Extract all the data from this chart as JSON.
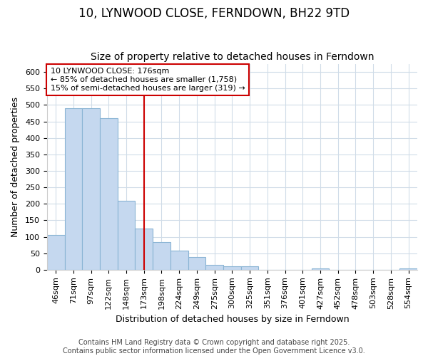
{
  "title": "10, LYNWOOD CLOSE, FERNDOWN, BH22 9TD",
  "subtitle": "Size of property relative to detached houses in Ferndown",
  "xlabel": "Distribution of detached houses by size in Ferndown",
  "ylabel": "Number of detached properties",
  "categories": [
    "46sqm",
    "71sqm",
    "97sqm",
    "122sqm",
    "148sqm",
    "173sqm",
    "198sqm",
    "224sqm",
    "249sqm",
    "275sqm",
    "300sqm",
    "325sqm",
    "351sqm",
    "376sqm",
    "401sqm",
    "427sqm",
    "452sqm",
    "478sqm",
    "503sqm",
    "528sqm",
    "554sqm"
  ],
  "values": [
    105,
    490,
    490,
    460,
    210,
    125,
    83,
    58,
    38,
    15,
    10,
    10,
    0,
    0,
    0,
    5,
    0,
    0,
    0,
    0,
    5
  ],
  "bar_color": "#c5d8ef",
  "bar_edge_color": "#8ab4d4",
  "property_line_color": "#cc0000",
  "annotation_text": "10 LYNWOOD CLOSE: 176sqm\n← 85% of detached houses are smaller (1,758)\n15% of semi-detached houses are larger (319) →",
  "ylim": [
    0,
    625
  ],
  "yticks": [
    0,
    50,
    100,
    150,
    200,
    250,
    300,
    350,
    400,
    450,
    500,
    550,
    600
  ],
  "footer": "Contains HM Land Registry data © Crown copyright and database right 2025.\nContains public sector information licensed under the Open Government Licence v3.0.",
  "background_color": "#ffffff",
  "grid_color": "#d0dce8",
  "title_fontsize": 12,
  "subtitle_fontsize": 10,
  "axis_label_fontsize": 9,
  "tick_fontsize": 8,
  "footer_fontsize": 7,
  "annotation_fontsize": 8
}
